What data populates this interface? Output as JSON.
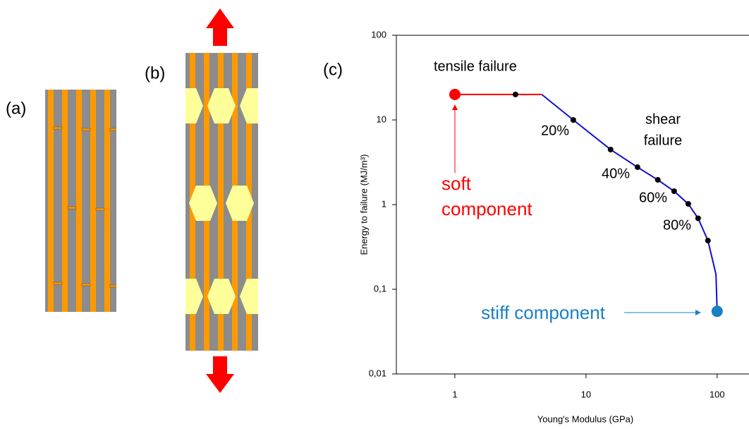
{
  "figure": {
    "labels": [
      "(a)",
      "(b)"
    ]
  },
  "chart_data": {
    "type": "line",
    "panel_label": "(c)",
    "x_label": "Young's Modulus  (GPa)",
    "y_label": "Energy to failure (MJ/m³)",
    "log_x": true,
    "log_y": true,
    "grid": false,
    "xlim": [
      0.358,
      175
    ],
    "ylim": [
      0.01,
      100
    ],
    "xticks": [
      1,
      10,
      100
    ],
    "yticks": [
      {
        "value": 0.01,
        "label": "0,01"
      },
      {
        "value": 0.1,
        "label": "0,1"
      },
      1,
      10,
      100
    ],
    "series": [
      {
        "color": "#ff0000",
        "style": "line",
        "x": [
          1,
          4.6
        ],
        "values": [
          20,
          20
        ]
      },
      {
        "color": "#1010cc",
        "style": "line",
        "x": [
          4.6,
          8,
          15.4,
          24.7,
          35.3,
          47,
          60.2,
          71.6,
          85.1,
          98,
          100
        ],
        "values": [
          20,
          10,
          4.47,
          2.77,
          1.96,
          1.44,
          1.02,
          0.69,
          0.376,
          0.15,
          0.055
        ]
      },
      {
        "color": "#000000",
        "style": "dots",
        "x": [
          2.9,
          8,
          15.4,
          24.7,
          35.3,
          47,
          60.2,
          71.6,
          85.1
        ],
        "values": [
          20,
          10,
          4.47,
          2.77,
          1.96,
          1.44,
          1.02,
          0.69,
          0.376
        ]
      },
      {
        "color": "#ff0000",
        "style": "big-dot",
        "x": [
          1
        ],
        "values": [
          20
        ]
      },
      {
        "color": "#1a7fc4",
        "style": "big-dot",
        "x": [
          100
        ],
        "values": [
          0.055
        ]
      }
    ],
    "annotations": {
      "tensile": "tensile failure",
      "shear": [
        "shear",
        "failure"
      ],
      "percents": [
        "20%",
        "40%",
        "60%",
        "80%"
      ],
      "soft": [
        "soft",
        "component"
      ],
      "stiff": "stiff component"
    }
  }
}
